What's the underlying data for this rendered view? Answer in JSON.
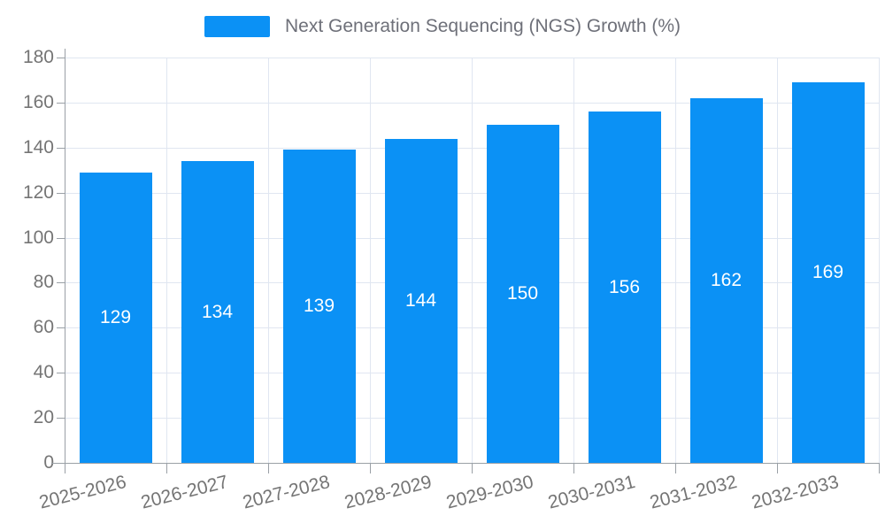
{
  "chart_data": {
    "type": "bar",
    "title": "",
    "legend": {
      "position": "top",
      "entries": [
        {
          "label": "Next Generation Sequencing (NGS) Growth (%)",
          "color": "#0b91f5"
        }
      ]
    },
    "categories": [
      "2025-2026",
      "2026-2027",
      "2027-2028",
      "2028-2029",
      "2029-2030",
      "2030-2031",
      "2031-2032",
      "2032-2033"
    ],
    "series": [
      {
        "name": "Next Generation Sequencing (NGS) Growth (%)",
        "values": [
          129,
          134,
          139,
          144,
          150,
          156,
          162,
          169
        ]
      }
    ],
    "value_labels": [
      "129",
      "134",
      "139",
      "144",
      "150",
      "156",
      "162",
      "169"
    ],
    "xlabel": "",
    "ylabel": "",
    "ylim": [
      0,
      180
    ],
    "ytick_step": 20,
    "ytick_labels": [
      "0",
      "20",
      "40",
      "60",
      "80",
      "100",
      "120",
      "140",
      "160",
      "180"
    ],
    "grid": true,
    "colors": {
      "bar": "#0b91f5",
      "value_label": "#ffffff",
      "axis_text": "#757575",
      "legend_text": "#6e7079",
      "gridline": "#e0e6f1",
      "axis_line": "#9aa0a6",
      "background": "#ffffff"
    }
  }
}
